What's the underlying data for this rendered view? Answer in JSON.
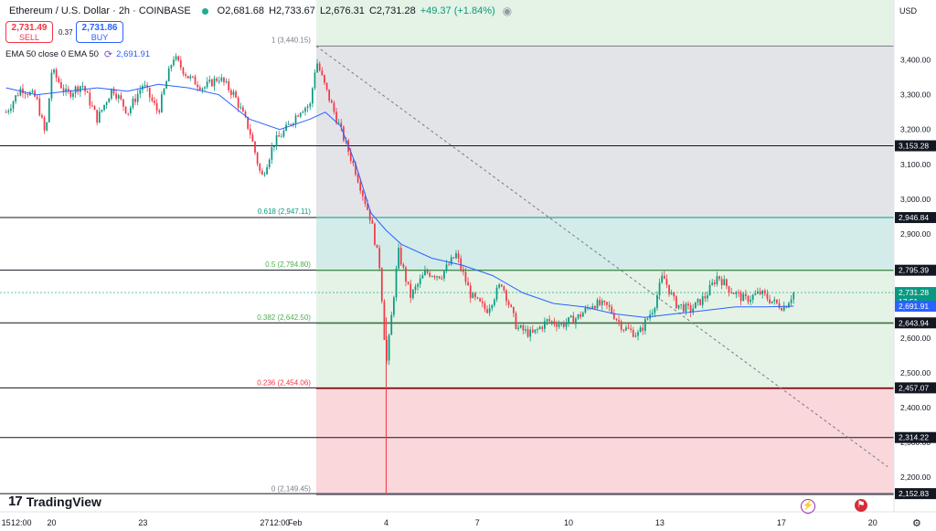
{
  "header": {
    "title": "Ethereum / U.S. Dollar · 2h · COINBASE",
    "open": "O2,681.68",
    "high": "H2,733.67",
    "low": "L2,676.31",
    "close": "C2,731.28",
    "change": "+49.37 (+1.84%)"
  },
  "trade": {
    "sell_price": "2,731.49",
    "sell_label": "SELL",
    "spread": "0.37",
    "buy_price": "2,731.86",
    "buy_label": "BUY"
  },
  "indicator": {
    "label": "EMA 50 close 0 EMA 50",
    "value": "2,691.91"
  },
  "currency": "USD",
  "brand": "TradingView",
  "colors": {
    "up": "#089981",
    "down": "#f23645",
    "ema": "#2962ff",
    "fib_gray": "#e3e4e8",
    "fib_teal": "#d3ece9",
    "fib_green": "#e4f3e5",
    "fib_red": "#f9d7da"
  },
  "icons": [
    "live-dot-icon",
    "eye-icon",
    "ema-settings-icon",
    "bolt-icon",
    "flag-icon",
    "gear-icon",
    "tradingview-logo-icon"
  ],
  "chart_data": {
    "type": "candlestick",
    "symbol": "Ethereum / U.S. Dollar",
    "interval": "2h",
    "ylim": [
      2140,
      3520
    ],
    "y_ticks": [
      2200,
      2300,
      2400,
      2500,
      2600,
      2700,
      2800,
      2900,
      3000,
      3100,
      3200,
      3300,
      3400
    ],
    "y_tick_labels": [
      "2,200.00",
      "2,300.00",
      "2,400.00",
      "2,500.00",
      "2,600.00",
      "2,700.00",
      "2,800.00",
      "2,900.00",
      "3,000.00",
      "3,100.00",
      "3,200.00",
      "3,300.00",
      "3,400.00"
    ],
    "x_ticks": [
      {
        "t": 0,
        "label": "15"
      },
      {
        "t": 0.5,
        "label": "12:00"
      },
      {
        "t": 1.5,
        "label": "20"
      },
      {
        "t": 4.5,
        "label": "23"
      },
      {
        "t": 8.5,
        "label": "27"
      },
      {
        "t": 9,
        "label": "12:00"
      },
      {
        "t": 9.5,
        "label": "Feb"
      },
      {
        "t": 12.5,
        "label": "4"
      },
      {
        "t": 15.5,
        "label": "7"
      },
      {
        "t": 18.5,
        "label": "10"
      },
      {
        "t": 21.5,
        "label": "13"
      },
      {
        "t": 25.5,
        "label": "17"
      },
      {
        "t": 28.5,
        "label": "20"
      }
    ],
    "candles_summary": [
      {
        "t": 0.0,
        "price": 3250
      },
      {
        "t": 0.5,
        "price": 3320
      },
      {
        "t": 1.0,
        "price": 3290
      },
      {
        "t": 1.3,
        "price": 3180
      },
      {
        "t": 1.5,
        "price": 3370
      },
      {
        "t": 2.0,
        "price": 3300
      },
      {
        "t": 2.5,
        "price": 3330
      },
      {
        "t": 3.0,
        "price": 3230
      },
      {
        "t": 3.5,
        "price": 3320
      },
      {
        "t": 4.0,
        "price": 3250
      },
      {
        "t": 4.5,
        "price": 3330
      },
      {
        "t": 5.0,
        "price": 3250
      },
      {
        "t": 5.5,
        "price": 3410
      },
      {
        "t": 6.0,
        "price": 3350
      },
      {
        "t": 6.5,
        "price": 3320
      },
      {
        "t": 7.0,
        "price": 3350
      },
      {
        "t": 7.5,
        "price": 3300
      },
      {
        "t": 8.0,
        "price": 3200
      },
      {
        "t": 8.4,
        "price": 3060
      },
      {
        "t": 8.8,
        "price": 3160
      },
      {
        "t": 9.2,
        "price": 3200
      },
      {
        "t": 9.7,
        "price": 3260
      },
      {
        "t": 10.0,
        "price": 3270
      },
      {
        "t": 10.2,
        "price": 3400
      },
      {
        "t": 10.5,
        "price": 3320
      },
      {
        "t": 11.0,
        "price": 3200
      },
      {
        "t": 11.5,
        "price": 3080
      },
      {
        "t": 12.0,
        "price": 2940
      },
      {
        "t": 12.3,
        "price": 2800
      },
      {
        "t": 12.5,
        "price": 2520
      },
      {
        "t": 12.6,
        "price": 2600
      },
      {
        "t": 12.9,
        "price": 2850
      },
      {
        "t": 13.3,
        "price": 2720
      },
      {
        "t": 13.8,
        "price": 2790
      },
      {
        "t": 14.3,
        "price": 2780
      },
      {
        "t": 14.8,
        "price": 2840
      },
      {
        "t": 15.3,
        "price": 2720
      },
      {
        "t": 15.8,
        "price": 2680
      },
      {
        "t": 16.3,
        "price": 2760
      },
      {
        "t": 16.8,
        "price": 2630
      },
      {
        "t": 17.3,
        "price": 2610
      },
      {
        "t": 17.8,
        "price": 2650
      },
      {
        "t": 18.3,
        "price": 2640
      },
      {
        "t": 18.8,
        "price": 2660
      },
      {
        "t": 19.3,
        "price": 2700
      },
      {
        "t": 19.8,
        "price": 2690
      },
      {
        "t": 20.3,
        "price": 2630
      },
      {
        "t": 20.8,
        "price": 2610
      },
      {
        "t": 21.3,
        "price": 2690
      },
      {
        "t": 21.6,
        "price": 2780
      },
      {
        "t": 22.0,
        "price": 2700
      },
      {
        "t": 22.5,
        "price": 2680
      },
      {
        "t": 23.0,
        "price": 2720
      },
      {
        "t": 23.4,
        "price": 2780
      },
      {
        "t": 23.8,
        "price": 2740
      },
      {
        "t": 24.3,
        "price": 2710
      },
      {
        "t": 24.8,
        "price": 2730
      },
      {
        "t": 25.3,
        "price": 2700
      },
      {
        "t": 25.6,
        "price": 2690
      },
      {
        "t": 25.9,
        "price": 2731
      }
    ],
    "ema_50": [
      {
        "t": 0.0,
        "v": 3320
      },
      {
        "t": 1.0,
        "v": 3300
      },
      {
        "t": 2.0,
        "v": 3310
      },
      {
        "t": 3.0,
        "v": 3320
      },
      {
        "t": 4.0,
        "v": 3310
      },
      {
        "t": 5.0,
        "v": 3330
      },
      {
        "t": 6.0,
        "v": 3320
      },
      {
        "t": 7.0,
        "v": 3300
      },
      {
        "t": 8.0,
        "v": 3230
      },
      {
        "t": 9.0,
        "v": 3200
      },
      {
        "t": 10.0,
        "v": 3230
      },
      {
        "t": 10.5,
        "v": 3250
      },
      {
        "t": 11.0,
        "v": 3210
      },
      {
        "t": 11.5,
        "v": 3100
      },
      {
        "t": 12.0,
        "v": 2960
      },
      {
        "t": 12.5,
        "v": 2910
      },
      {
        "t": 13.0,
        "v": 2870
      },
      {
        "t": 14.0,
        "v": 2830
      },
      {
        "t": 15.0,
        "v": 2810
      },
      {
        "t": 16.0,
        "v": 2780
      },
      {
        "t": 17.0,
        "v": 2730
      },
      {
        "t": 18.0,
        "v": 2700
      },
      {
        "t": 19.0,
        "v": 2690
      },
      {
        "t": 20.0,
        "v": 2670
      },
      {
        "t": 21.0,
        "v": 2660
      },
      {
        "t": 22.0,
        "v": 2670
      },
      {
        "t": 23.0,
        "v": 2680
      },
      {
        "t": 24.0,
        "v": 2690
      },
      {
        "t": 25.0,
        "v": 2690
      },
      {
        "t": 25.9,
        "v": 2692
      }
    ],
    "fib_levels": [
      {
        "ratio": "1",
        "price": 3440.15,
        "label": "1 (3,440.15)",
        "color": "#787b86"
      },
      {
        "ratio": "0.618",
        "price": 2947.11,
        "label": "0.618 (2,947.11)",
        "color": "#089981"
      },
      {
        "ratio": "0.5",
        "price": 2794.8,
        "label": "0.5 (2,794.80)",
        "color": "#4caf50"
      },
      {
        "ratio": "0.382",
        "price": 2642.5,
        "label": "0.382 (2,642.50)",
        "color": "#4caf50"
      },
      {
        "ratio": "0.236",
        "price": 2454.06,
        "label": "0.236 (2,454.06)",
        "color": "#f23645"
      },
      {
        "ratio": "0",
        "price": 2149.45,
        "label": "0 (2,149.45)",
        "color": "#787b86"
      }
    ],
    "horizontal_lines": [
      {
        "price": 3153.28,
        "label": "3,153.28"
      },
      {
        "price": 2946.84,
        "label": "2,946.84"
      },
      {
        "price": 2795.39,
        "label": "2,795.39"
      },
      {
        "price": 2643.94,
        "label": "2,643.94"
      },
      {
        "price": 2457.07,
        "label": "2,457.07"
      },
      {
        "price": 2314.22,
        "label": "2,314.22"
      },
      {
        "price": 2152.83,
        "label": "2,152.83"
      }
    ],
    "last_price": {
      "price": 2731.28,
      "label": "2,731.28",
      "countdown": "17:51"
    },
    "ema_price_label": {
      "price": 2691.91,
      "label": "2,691.91"
    },
    "trendline": {
      "start": {
        "t": 10.2,
        "price": 3440
      },
      "end": {
        "t": 29.0,
        "price": 2230
      }
    }
  }
}
